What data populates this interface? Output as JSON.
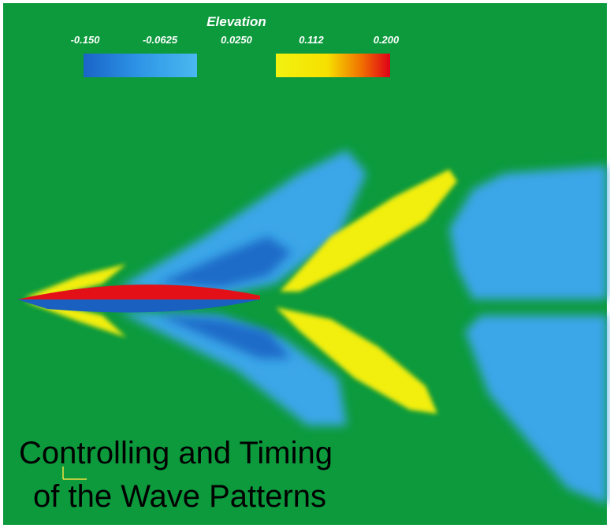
{
  "colorbar": {
    "title": "Elevation",
    "ticks": [
      "-0.150",
      "-0.0625",
      "0.0250",
      "0.112",
      "0.200"
    ]
  },
  "caption": {
    "lines": [
      "Controlling and Timing",
      "of the Wave Patterns"
    ]
  }
}
